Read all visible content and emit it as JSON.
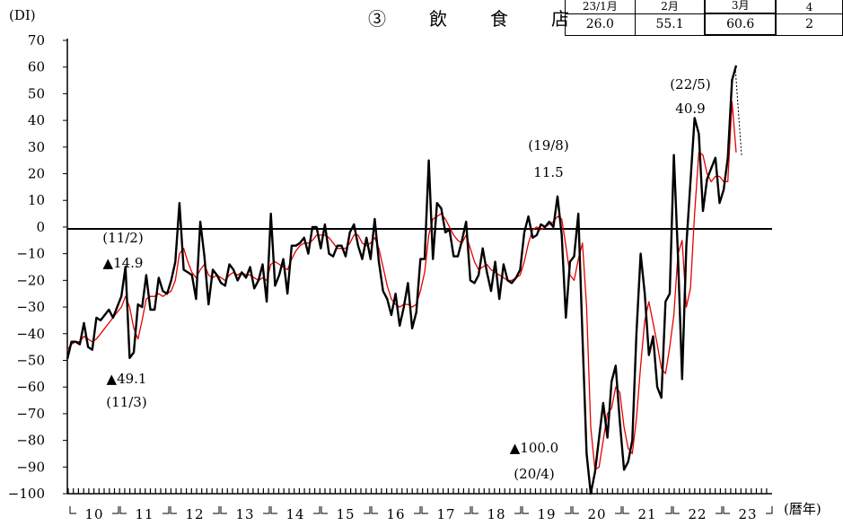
{
  "chart_data": {
    "type": "line",
    "title": "③　飲　食　店",
    "ylabel": "(DI)",
    "xlabel": "(暦年)",
    "ylim": [
      -100,
      70
    ],
    "yticks": [
      70,
      60,
      50,
      40,
      30,
      20,
      10,
      0,
      -10,
      -20,
      -30,
      -40,
      -50,
      -60,
      -70,
      -80,
      -90,
      -100
    ],
    "xtick_labels": [
      "10",
      "11",
      "12",
      "13",
      "14",
      "15",
      "16",
      "17",
      "18",
      "19",
      "20",
      "21",
      "22",
      "23"
    ],
    "series": [
      {
        "values": [
          -49.5,
          -43,
          -43,
          -44,
          -36,
          -45,
          -46,
          -34,
          -35,
          -33,
          -31,
          -34,
          -30,
          -26,
          -14.9,
          -49.1,
          -47,
          -29,
          -30,
          -18,
          -31,
          -31,
          -19,
          -24,
          -25,
          -20,
          -13,
          9,
          -16,
          -17,
          -18,
          -27,
          2,
          -11,
          -29,
          -16,
          -18,
          -21,
          -22,
          -14,
          -16,
          -20,
          -17,
          -19,
          -15,
          -23,
          -20,
          -14,
          -28,
          5,
          -22,
          -18,
          -12,
          -25,
          -7,
          -7,
          -6,
          -4,
          -10,
          0,
          0,
          -8,
          1,
          -10,
          -11,
          -7,
          -7,
          -11,
          -2,
          1,
          -7,
          -12,
          -4,
          -12,
          3,
          -13,
          -24,
          -27,
          -33,
          -25,
          -37,
          -30,
          -21,
          -38,
          -32,
          -12,
          -12,
          25,
          -12,
          9,
          7,
          -2,
          -1,
          -11,
          -11,
          -5,
          2,
          -20,
          -21,
          -18,
          -8,
          -17,
          -24,
          -13,
          -27,
          -14,
          -20,
          -21,
          -19,
          -16,
          -2,
          4,
          -4,
          -3,
          1,
          0,
          2,
          0,
          11.5,
          -3,
          -34,
          -13,
          -11,
          5,
          -41,
          -85,
          -100,
          -92,
          -79,
          -66,
          -79,
          -58,
          -52,
          -73,
          -91,
          -88,
          -80,
          -40,
          -10,
          -25,
          -48,
          -41,
          -60,
          -64,
          -28,
          -25,
          27,
          -11,
          -57,
          -7,
          17,
          40.9,
          35,
          6,
          18,
          22,
          26,
          9,
          14,
          26,
          55.1,
          60.6
        ],
        "color": "#000000"
      },
      {
        "values": [
          -46,
          -44,
          -43,
          -43,
          -41,
          -42,
          -43,
          -42,
          -40,
          -38,
          -36,
          -34,
          -32,
          -30,
          -26,
          -30,
          -38,
          -42,
          -35,
          -27,
          -26,
          -26,
          -25,
          -26,
          -25,
          -24,
          -20,
          -10,
          -8,
          -13,
          -17,
          -19,
          -16,
          -14,
          -18,
          -19,
          -18,
          -19,
          -20,
          -18,
          -17,
          -18,
          -17,
          -18,
          -18,
          -19,
          -20,
          -19,
          -20,
          -14,
          -13,
          -14,
          -15,
          -16,
          -12,
          -9,
          -7,
          -6,
          -6,
          -5,
          -3,
          -3,
          -3,
          -4,
          -6,
          -8,
          -8,
          -8,
          -6,
          -3,
          -3,
          -6,
          -7,
          -6,
          -4,
          -8,
          -15,
          -22,
          -27,
          -29,
          -30,
          -29,
          -29,
          -30,
          -29,
          -24,
          -17,
          -3,
          3,
          4,
          5,
          3,
          0,
          -3,
          -5,
          -6,
          -3,
          -8,
          -13,
          -16,
          -15,
          -14,
          -16,
          -17,
          -18,
          -19,
          -20,
          -20,
          -19,
          -18,
          -13,
          -6,
          -1,
          0,
          -1,
          0,
          1,
          2,
          4,
          3,
          -7,
          -18,
          -20,
          -12,
          -6,
          -30,
          -75,
          -91,
          -90,
          -80,
          -70,
          -68,
          -60,
          -62,
          -75,
          -83,
          -85,
          -72,
          -52,
          -35,
          -28,
          -36,
          -44,
          -53,
          -55,
          -45,
          -33,
          -10,
          -5,
          -30,
          -23,
          5,
          28,
          27,
          20,
          17,
          19,
          19,
          17,
          17,
          47,
          28
        ],
        "color": "#e60000"
      }
    ],
    "annotations": [
      {
        "text": "(11/2)",
        "text2": "▲14.9"
      },
      {
        "text": "▲49.1",
        "text2": "(11/3)"
      },
      {
        "text": "(19/8)",
        "text2": "11.5"
      },
      {
        "text": "▲100.0",
        "text2": "(20/4)"
      },
      {
        "text": "(22/5)",
        "text2": "40.9"
      }
    ]
  },
  "mini_table": {
    "headers": [
      "23/1月",
      "2月",
      "3月",
      "4"
    ],
    "values": [
      "26.0",
      "55.1",
      "60.6",
      "2"
    ]
  }
}
